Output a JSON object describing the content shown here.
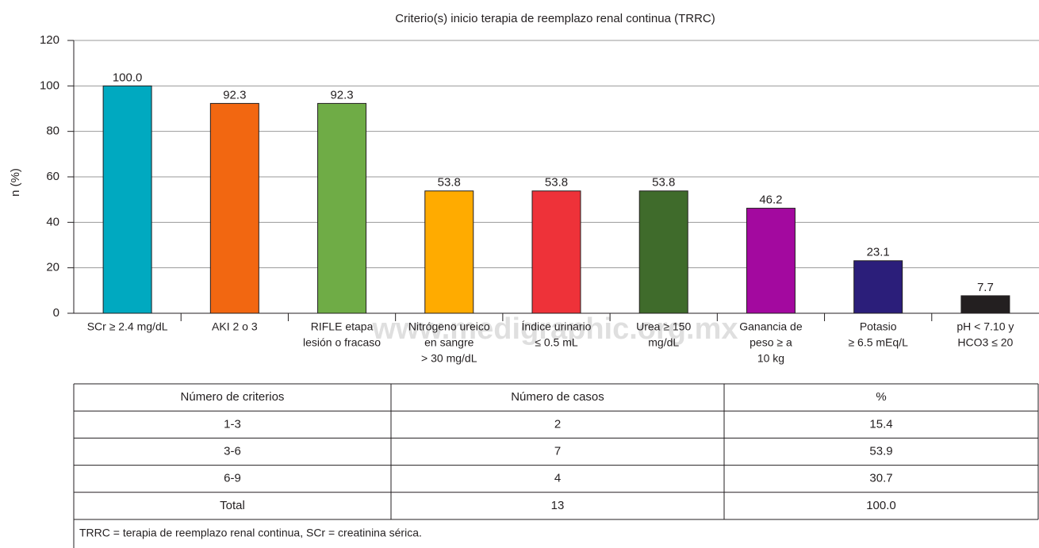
{
  "chart_data": {
    "type": "bar",
    "title": "Criterio(s) inicio terapia de reemplazo renal continua (TRRC)",
    "y_label": "n (%)",
    "categories": [
      [
        "SCr ≥ 2.4 mg/dL"
      ],
      [
        "AKI 2 o 3"
      ],
      [
        "RIFLE etapa",
        "lesión o fracaso"
      ],
      [
        "Nitrógeno ureico",
        "en sangre",
        "> 30 mg/dL"
      ],
      [
        "Índice urinario",
        "≤ 0.5 mL"
      ],
      [
        "Urea ≥ 150",
        "mg/dL"
      ],
      [
        "Ganancia de",
        "peso ≥ a",
        "10 kg"
      ],
      [
        "Potasio",
        "≥ 6.5 mEq/L"
      ],
      [
        "pH < 7.10 y",
        "HCO3 ≤ 20"
      ]
    ],
    "values": [
      100,
      92.3,
      92.3,
      53.8,
      53.8,
      53.8,
      46.2,
      23.1,
      7.7
    ],
    "value_labels": [
      "100.0",
      "92.3",
      "92.3",
      "53.8",
      "53.8",
      "53.8",
      "46.2",
      "23.1",
      "7.7"
    ],
    "colors": [
      "#00a9c0",
      "#f26711",
      "#6fac46",
      "#ffab00",
      "#ee3239",
      "#3f6b2b",
      "#a3099f",
      "#2b1e7a",
      "#231f20"
    ],
    "ylim": [
      0,
      120
    ],
    "yticks": [
      0,
      20,
      40,
      60,
      80,
      100,
      120
    ],
    "grid": true
  },
  "watermark": "www.medigraphic.org.mx",
  "table": {
    "header": [
      "Número de criterios",
      "Número de casos",
      "%"
    ],
    "rows": [
      [
        "1-3",
        "2",
        "15.4"
      ],
      [
        "3-6",
        "7",
        "53.9"
      ],
      [
        "6-9",
        "4",
        "30.7"
      ],
      [
        "Total",
        "13",
        "100.0"
      ]
    ],
    "footnote": "TRRC = terapia de reemplazo renal continua, SCr = creatinina sérica."
  }
}
